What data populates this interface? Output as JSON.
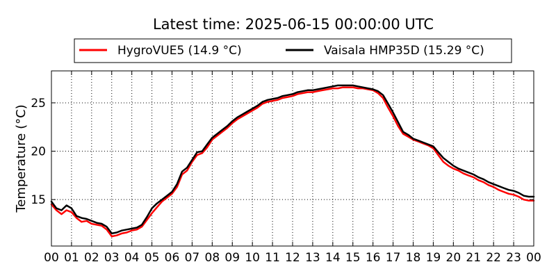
{
  "chart_data": {
    "type": "line",
    "title": "Latest time: 2025-06-15 00:00:00 UTC",
    "xlabel": "",
    "ylabel": "Temperature (°C)",
    "x_ticks": [
      "00",
      "01",
      "02",
      "03",
      "04",
      "05",
      "06",
      "07",
      "08",
      "09",
      "10",
      "11",
      "12",
      "13",
      "14",
      "15",
      "16",
      "17",
      "18",
      "19",
      "20",
      "21",
      "22",
      "23",
      "00"
    ],
    "x_range_hours": [
      0,
      24
    ],
    "ylim": [
      10.2,
      28.3
    ],
    "y_ticks": [
      15,
      20,
      25
    ],
    "grid": true,
    "legend_position": "top",
    "series": [
      {
        "name": "HygroVUE5 (14.9 °C)",
        "color": "#ff0000",
        "x": [
          0.0,
          0.25,
          0.5,
          0.75,
          1.0,
          1.25,
          1.5,
          1.75,
          2.0,
          2.25,
          2.5,
          2.75,
          3.0,
          3.25,
          3.5,
          3.75,
          4.0,
          4.25,
          4.5,
          4.75,
          5.0,
          5.25,
          5.5,
          5.75,
          6.0,
          6.25,
          6.5,
          6.75,
          7.0,
          7.25,
          7.5,
          7.75,
          8.0,
          8.25,
          8.5,
          8.75,
          9.0,
          9.25,
          9.5,
          9.75,
          10.0,
          10.25,
          10.5,
          10.75,
          11.0,
          11.25,
          11.5,
          11.75,
          12.0,
          12.25,
          12.5,
          12.75,
          13.0,
          13.25,
          13.5,
          13.75,
          14.0,
          14.25,
          14.5,
          14.75,
          15.0,
          15.25,
          15.5,
          15.75,
          16.0,
          16.25,
          16.5,
          16.75,
          17.0,
          17.25,
          17.5,
          17.75,
          18.0,
          18.25,
          18.5,
          18.75,
          19.0,
          19.25,
          19.5,
          19.75,
          20.0,
          20.25,
          20.5,
          20.75,
          21.0,
          21.25,
          21.5,
          21.75,
          22.0,
          22.25,
          22.5,
          22.75,
          23.0,
          23.25,
          23.5,
          23.75,
          24.0
        ],
        "values": [
          14.5,
          13.9,
          13.5,
          13.9,
          13.7,
          13.1,
          12.7,
          12.8,
          12.5,
          12.4,
          12.3,
          11.9,
          11.2,
          11.3,
          11.5,
          11.6,
          11.8,
          11.9,
          12.2,
          12.9,
          13.6,
          14.2,
          14.8,
          15.2,
          15.6,
          16.3,
          17.6,
          18.0,
          18.9,
          19.6,
          19.8,
          20.4,
          21.2,
          21.6,
          22.0,
          22.4,
          22.9,
          23.3,
          23.6,
          23.9,
          24.2,
          24.5,
          24.9,
          25.1,
          25.2,
          25.3,
          25.5,
          25.6,
          25.7,
          25.9,
          26.0,
          26.1,
          26.1,
          26.2,
          26.3,
          26.4,
          26.5,
          26.5,
          26.6,
          26.6,
          26.6,
          26.5,
          26.5,
          26.4,
          26.3,
          26.0,
          25.5,
          24.5,
          23.6,
          22.6,
          21.8,
          21.5,
          21.2,
          21.0,
          20.8,
          20.6,
          20.3,
          19.6,
          18.9,
          18.5,
          18.2,
          18.0,
          17.7,
          17.5,
          17.3,
          17.0,
          16.8,
          16.5,
          16.3,
          16.0,
          15.8,
          15.6,
          15.5,
          15.3,
          15.0,
          14.9,
          14.9
        ]
      },
      {
        "name": "Vaisala HMP35D (15.29 °C)",
        "color": "#000000",
        "x": [
          0.0,
          0.25,
          0.5,
          0.75,
          1.0,
          1.25,
          1.5,
          1.75,
          2.0,
          2.25,
          2.5,
          2.75,
          3.0,
          3.25,
          3.5,
          3.75,
          4.0,
          4.25,
          4.5,
          4.75,
          5.0,
          5.25,
          5.5,
          5.75,
          6.0,
          6.25,
          6.5,
          6.75,
          7.0,
          7.25,
          7.5,
          7.75,
          8.0,
          8.25,
          8.5,
          8.75,
          9.0,
          9.25,
          9.5,
          9.75,
          10.0,
          10.25,
          10.5,
          10.75,
          11.0,
          11.25,
          11.5,
          11.75,
          12.0,
          12.25,
          12.5,
          12.75,
          13.0,
          13.25,
          13.5,
          13.75,
          14.0,
          14.25,
          14.5,
          14.75,
          15.0,
          15.25,
          15.5,
          15.75,
          16.0,
          16.25,
          16.5,
          16.75,
          17.0,
          17.25,
          17.5,
          17.75,
          18.0,
          18.25,
          18.5,
          18.75,
          19.0,
          19.25,
          19.5,
          19.75,
          20.0,
          20.25,
          20.5,
          20.75,
          21.0,
          21.25,
          21.5,
          21.75,
          22.0,
          22.25,
          22.5,
          22.75,
          23.0,
          23.25,
          23.5,
          23.75,
          24.0
        ],
        "values": [
          14.8,
          14.1,
          13.9,
          14.4,
          14.1,
          13.3,
          13.1,
          13.0,
          12.8,
          12.6,
          12.5,
          12.2,
          11.5,
          11.6,
          11.8,
          11.9,
          12.0,
          12.1,
          12.4,
          13.2,
          14.1,
          14.6,
          15.0,
          15.4,
          15.8,
          16.6,
          17.9,
          18.3,
          19.1,
          19.9,
          20.0,
          20.7,
          21.4,
          21.8,
          22.2,
          22.6,
          23.1,
          23.5,
          23.8,
          24.1,
          24.4,
          24.7,
          25.1,
          25.3,
          25.4,
          25.5,
          25.7,
          25.8,
          25.9,
          26.1,
          26.2,
          26.3,
          26.3,
          26.4,
          26.5,
          26.6,
          26.7,
          26.8,
          26.8,
          26.8,
          26.8,
          26.7,
          26.6,
          26.5,
          26.4,
          26.2,
          25.8,
          24.9,
          24.0,
          23.0,
          22.0,
          21.7,
          21.3,
          21.1,
          20.9,
          20.7,
          20.5,
          19.9,
          19.3,
          18.9,
          18.5,
          18.2,
          18.0,
          17.8,
          17.6,
          17.3,
          17.1,
          16.8,
          16.6,
          16.4,
          16.2,
          16.0,
          15.9,
          15.7,
          15.4,
          15.3,
          15.3
        ]
      }
    ]
  }
}
